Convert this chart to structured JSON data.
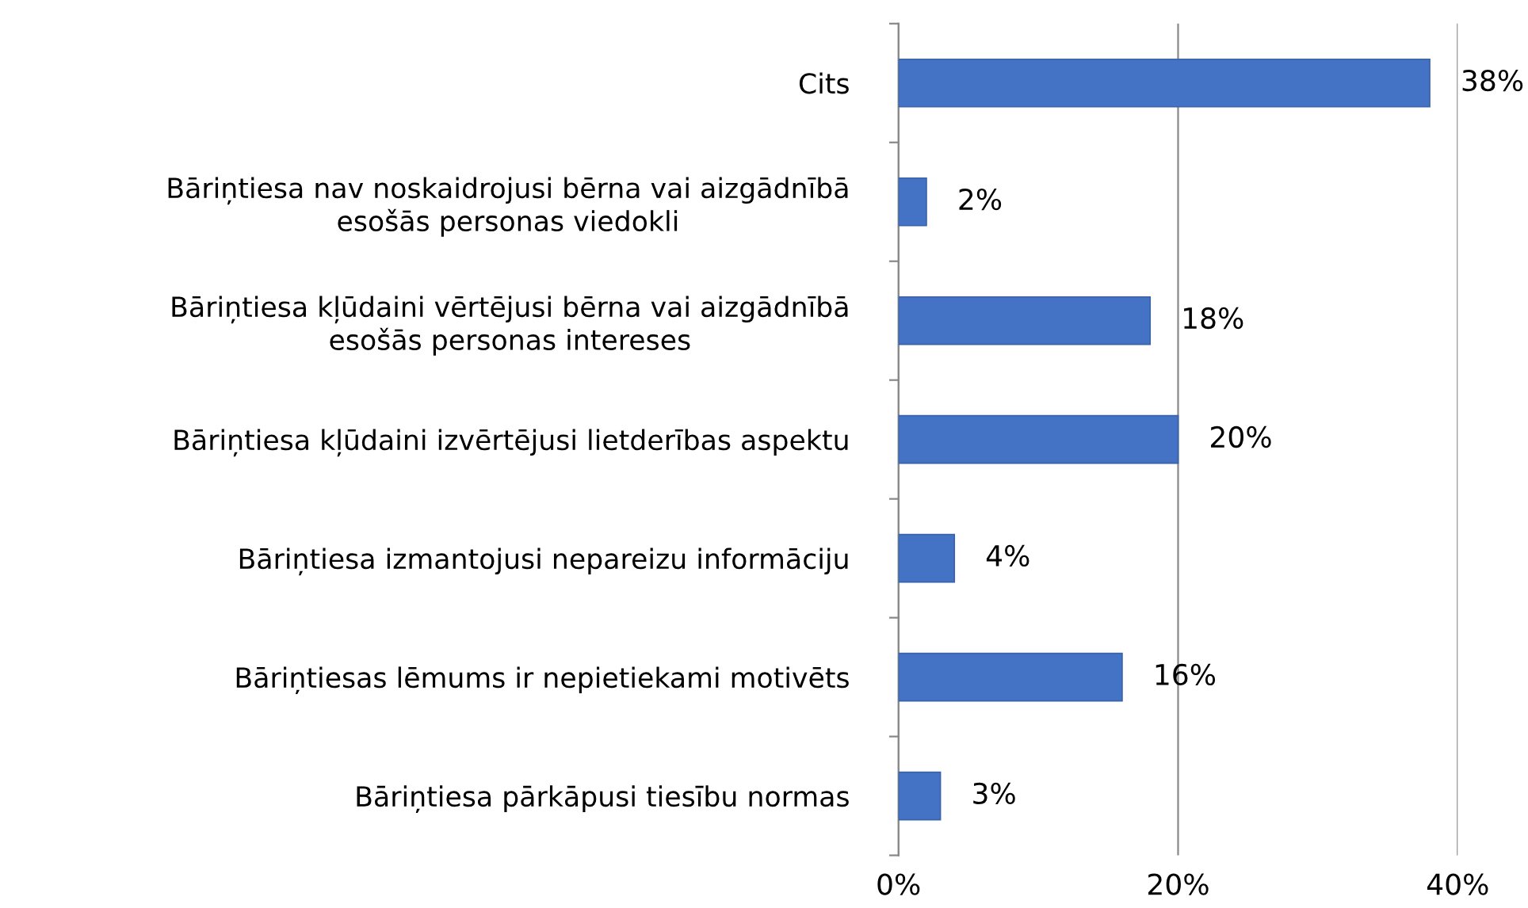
{
  "chart_data": {
    "type": "bar",
    "orientation": "horizontal",
    "categories": [
      "Cits",
      "Bāriņtiesa nav noskaidrojusi bērna vai aizgādnībā\nesošās personas viedokli",
      "Bāriņtiesa kļūdaini vērtējusi bērna vai aizgādnībā\nesošās personas intereses",
      "Bāriņtiesa kļūdaini izvērtējusi lietderības aspektu",
      "Bāriņtiesa izmantojusi nepareizu informāciju",
      "Bāriņtiesas lēmums ir nepietiekami motivēts",
      "Bāriņtiesa pārkāpusi tiesību normas"
    ],
    "values": [
      38,
      2,
      18,
      20,
      4,
      16,
      3
    ],
    "value_labels": [
      "38%",
      "2%",
      "18%",
      "20%",
      "4%",
      "16%",
      "3%"
    ],
    "color": "#4472c4",
    "xlim": [
      0,
      40
    ],
    "xticks": [
      {
        "value": 0,
        "label": "0%"
      },
      {
        "value": 20,
        "label": "20%"
      },
      {
        "value": 40,
        "label": "40%"
      }
    ],
    "grid": "x"
  }
}
